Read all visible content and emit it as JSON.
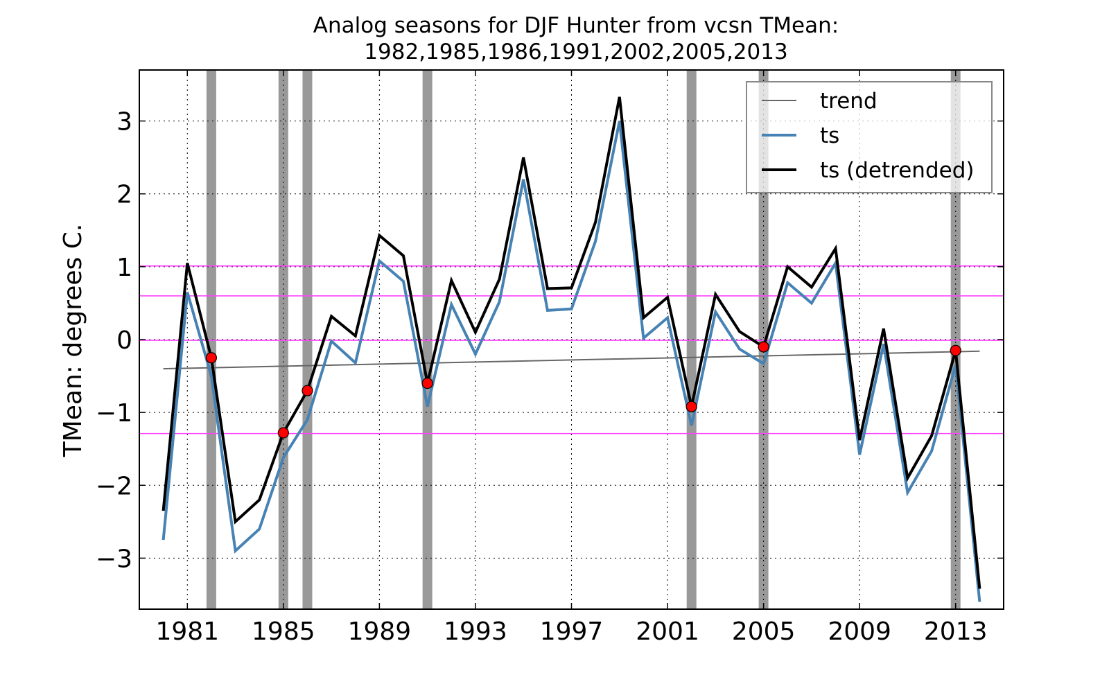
{
  "chart_data": {
    "type": "line",
    "title_line1": "Analog seasons for DJF Hunter from vcsn TMean:",
    "title_line2": "1982,1985,1986,1991,2002,2005,2013",
    "xlabel": "",
    "ylabel": "TMean: degrees C.",
    "xlim": [
      1979,
      2015
    ],
    "ylim": [
      -3.7,
      3.7
    ],
    "xticks": [
      1981,
      1985,
      1989,
      1993,
      1997,
      2001,
      2005,
      2009,
      2013
    ],
    "yticks": [
      -3,
      -2,
      -1,
      0,
      1,
      2,
      3
    ],
    "grid": true,
    "legend_position": "top-right",
    "x": [
      1980,
      1981,
      1982,
      1983,
      1984,
      1985,
      1986,
      1987,
      1988,
      1989,
      1990,
      1991,
      1992,
      1993,
      1994,
      1995,
      1996,
      1997,
      1998,
      1999,
      2000,
      2001,
      2002,
      2003,
      2004,
      2005,
      2006,
      2007,
      2008,
      2009,
      2010,
      2011,
      2012,
      2013,
      2014
    ],
    "series": [
      {
        "name": "trend",
        "color": "#666666",
        "x": [
          1980,
          2014
        ],
        "values": [
          -0.4,
          -0.16
        ]
      },
      {
        "name": "ts",
        "color": "#4682b4",
        "values": [
          -2.75,
          0.65,
          -0.5,
          -2.9,
          -2.6,
          -1.62,
          -1.1,
          -0.02,
          -0.32,
          1.08,
          0.8,
          -0.92,
          0.48,
          -0.2,
          0.52,
          2.2,
          0.4,
          0.42,
          1.35,
          3.0,
          0.02,
          0.3,
          -1.18,
          0.38,
          -0.13,
          -0.33,
          0.78,
          0.5,
          1.05,
          -1.58,
          -0.06,
          -2.1,
          -1.53,
          -0.35,
          -3.6
        ]
      },
      {
        "name": "ts (detrended)",
        "color": "#000000",
        "values": [
          -2.35,
          1.05,
          -0.25,
          -2.5,
          -2.2,
          -1.28,
          -0.7,
          0.32,
          0.05,
          1.43,
          1.15,
          -0.6,
          0.81,
          0.1,
          0.83,
          2.5,
          0.7,
          0.71,
          1.61,
          3.33,
          0.3,
          0.58,
          -0.92,
          0.62,
          0.11,
          -0.1,
          1.0,
          0.72,
          1.25,
          -1.38,
          0.15,
          -1.9,
          -1.32,
          -0.15,
          -3.42
        ]
      }
    ],
    "analog_years": [
      1982,
      1985,
      1986,
      1991,
      2002,
      2005,
      2013
    ],
    "analog_band_color": "#999999",
    "analog_points": [
      {
        "x": 1982,
        "y": -0.25
      },
      {
        "x": 1985,
        "y": -1.28
      },
      {
        "x": 1986,
        "y": -0.7
      },
      {
        "x": 1991,
        "y": -0.6
      },
      {
        "x": 2002,
        "y": -0.92
      },
      {
        "x": 2005,
        "y": -0.1
      },
      {
        "x": 2013,
        "y": -0.15
      }
    ],
    "analog_point_color": "#ff0000",
    "reference_lines": [
      1.01,
      0.6,
      -0.01,
      -1.29
    ],
    "reference_line_color": "#ff44ff"
  }
}
